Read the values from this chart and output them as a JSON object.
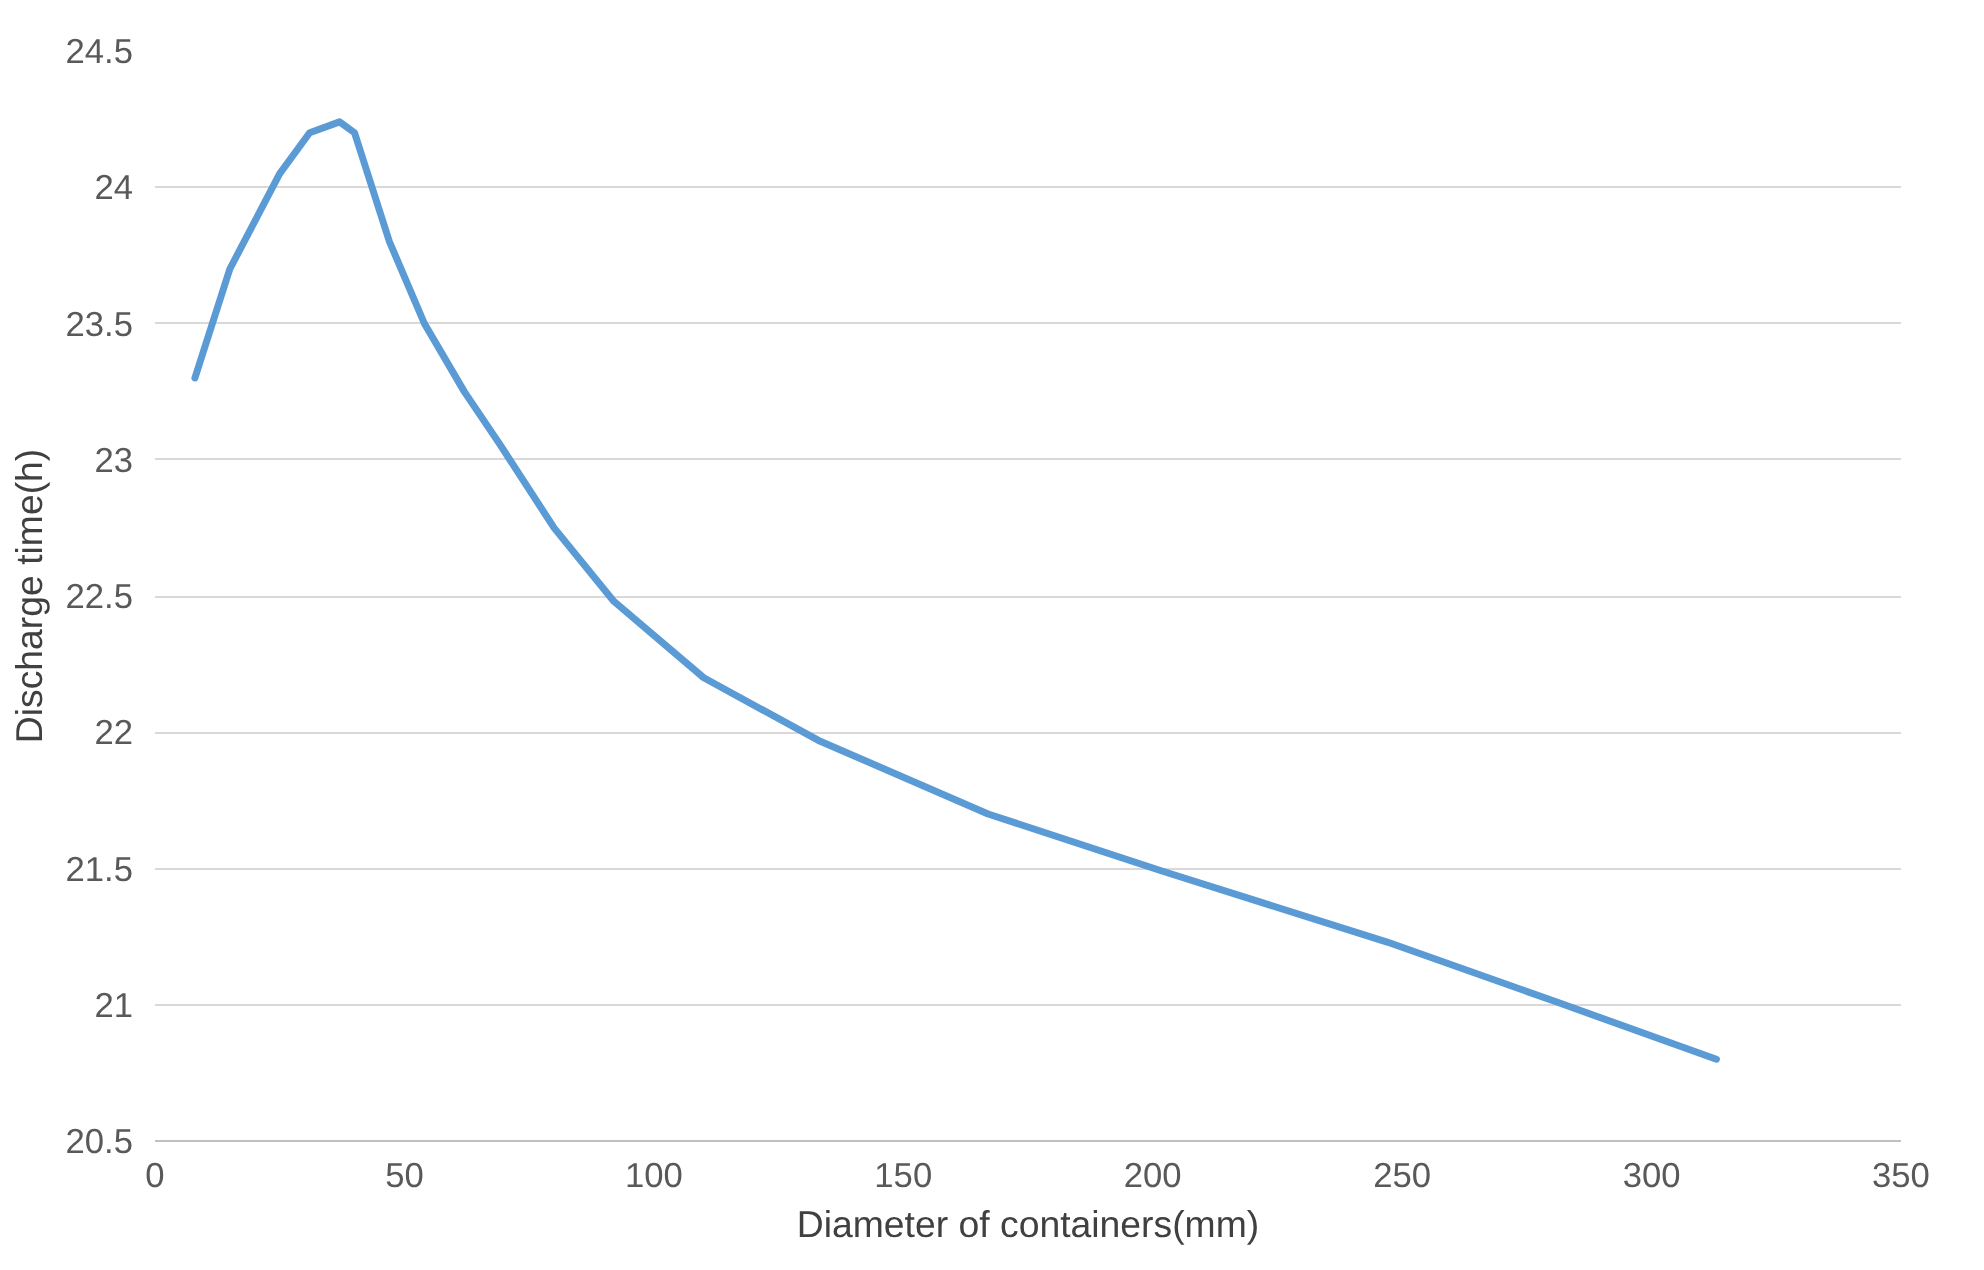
{
  "chart_data": {
    "type": "line",
    "xlabel": "Diameter of containers(mm)",
    "ylabel": "Discharge time(h)",
    "x": [
      8,
      15,
      25,
      31,
      37,
      40,
      47,
      54,
      62,
      69,
      80,
      92,
      110,
      133,
      167,
      202,
      247,
      281,
      313
    ],
    "series": [
      {
        "color": "#5b9bd5",
        "values": [
          23.3,
          23.7,
          24.05,
          24.2,
          24.24,
          24.2,
          23.8,
          23.5,
          23.25,
          23.06,
          22.75,
          22.48,
          22.2,
          21.97,
          21.7,
          21.49,
          21.23,
          21.01,
          20.8
        ]
      }
    ],
    "xlim": [
      0,
      350
    ],
    "xticks": [
      0,
      50,
      100,
      150,
      200,
      250,
      300,
      350
    ],
    "ylim": [
      20.5,
      24.5
    ],
    "yticks": [
      20.5,
      21,
      21.5,
      22,
      22.5,
      23,
      23.5,
      24,
      24.5
    ],
    "grid": "y",
    "marker": "none",
    "line_style": "solid"
  }
}
